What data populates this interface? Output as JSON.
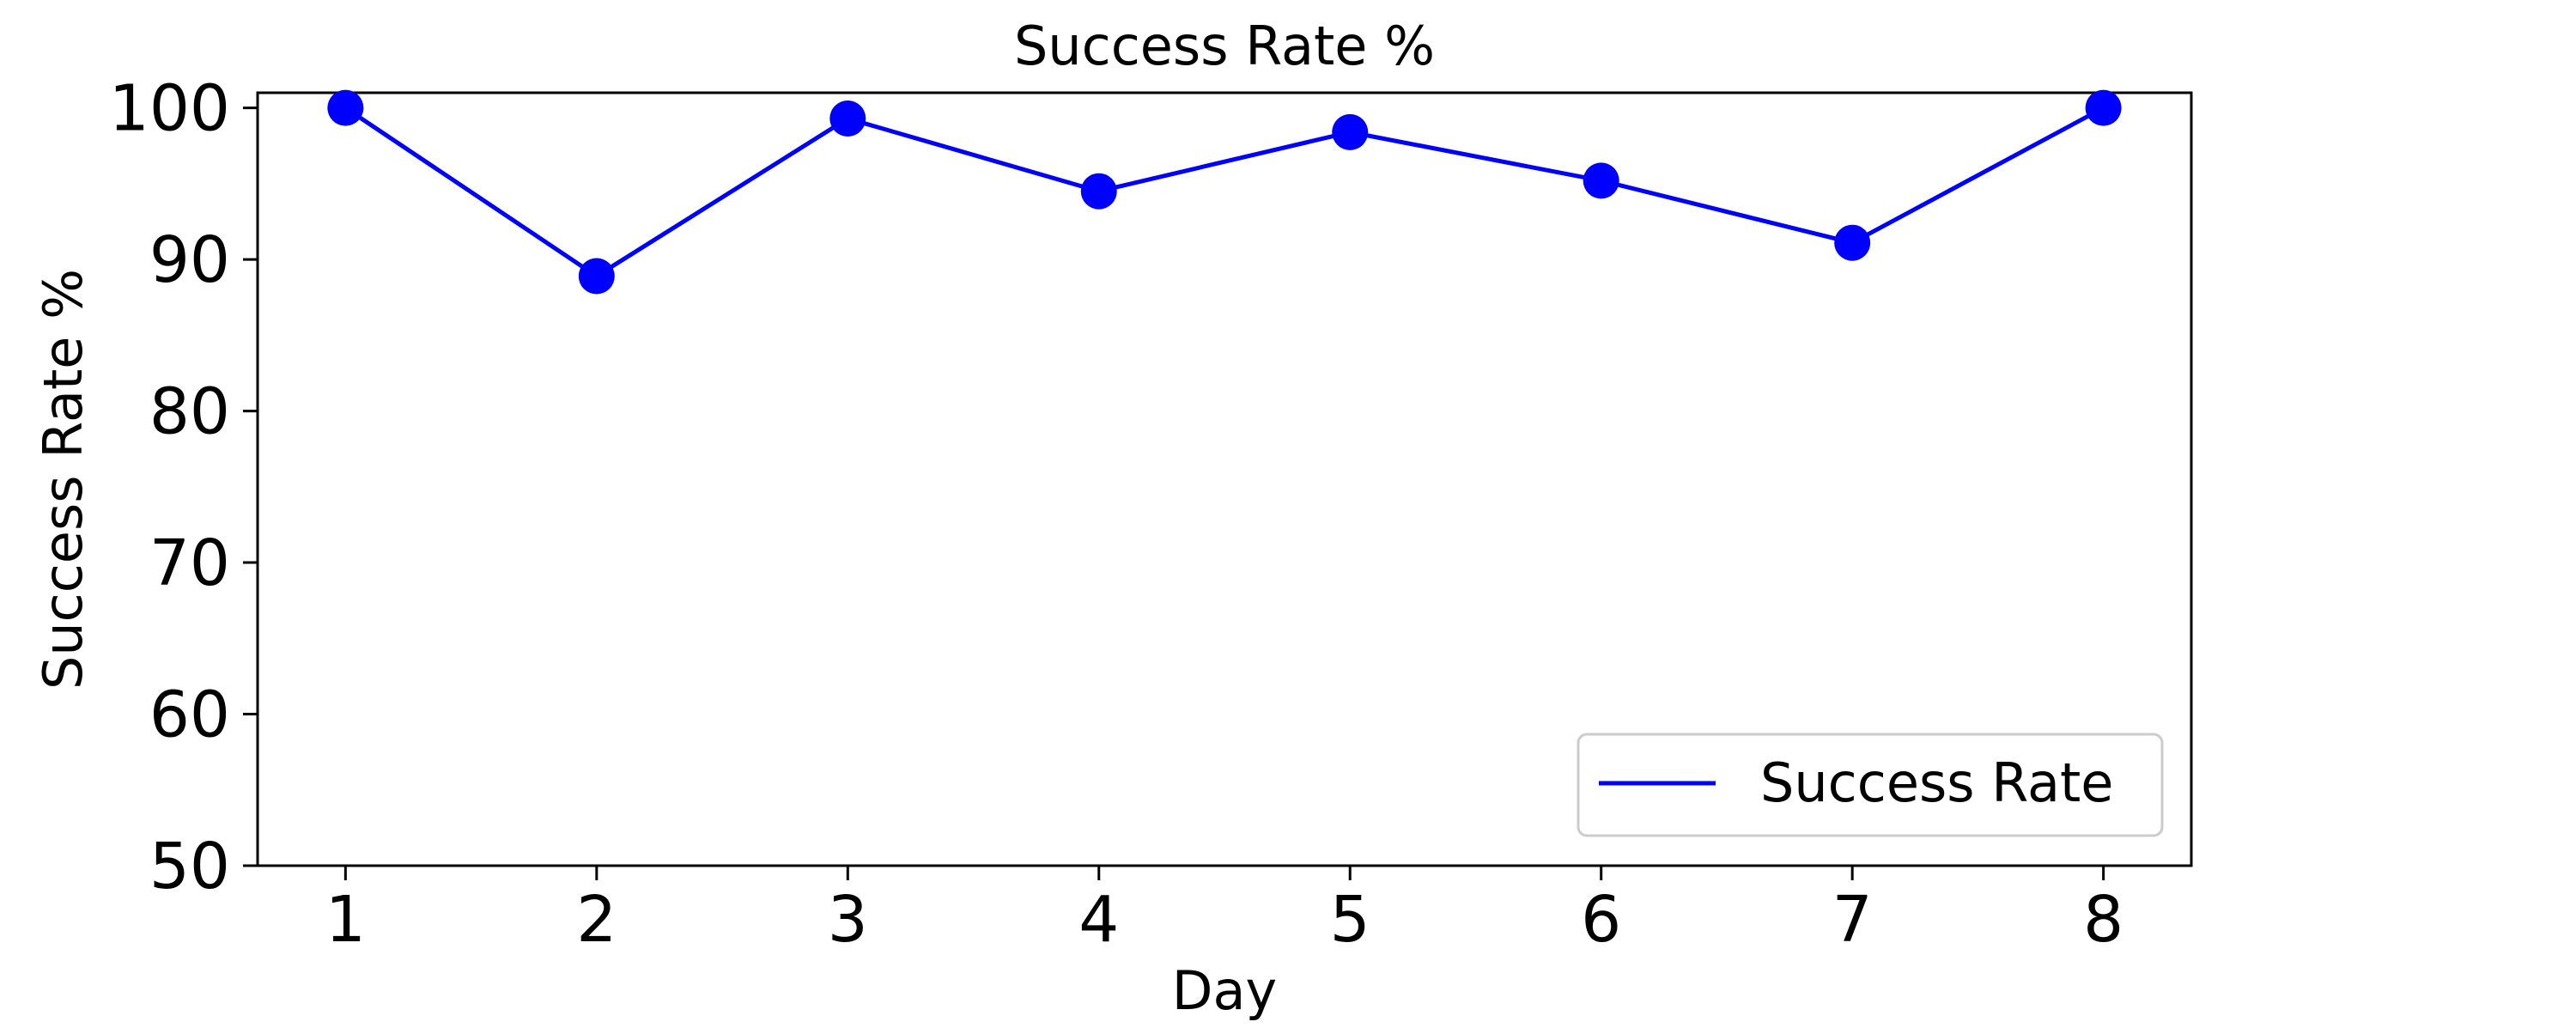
{
  "chart_data": {
    "type": "line",
    "title": "Success Rate %",
    "xlabel": "Day",
    "ylabel": "Success Rate %",
    "x": [
      1,
      2,
      3,
      4,
      5,
      6,
      7,
      8
    ],
    "x_tick_labels": [
      "1",
      "2",
      "3",
      "4",
      "5",
      "6",
      "7",
      "8"
    ],
    "y_ticks": [
      50,
      60,
      70,
      80,
      90,
      100
    ],
    "y_tick_labels": [
      "50",
      "60",
      "70",
      "80",
      "90",
      "100"
    ],
    "xlim": [
      0.65,
      8.35
    ],
    "ylim": [
      50,
      101
    ],
    "grid": false,
    "legend_position": "lower right",
    "series": [
      {
        "name": "Success Rate",
        "color": "#0000ff",
        "marker": "circle",
        "values": [
          100,
          88.9,
          99.3,
          94.5,
          98.4,
          95.2,
          91.1,
          100
        ]
      }
    ]
  }
}
